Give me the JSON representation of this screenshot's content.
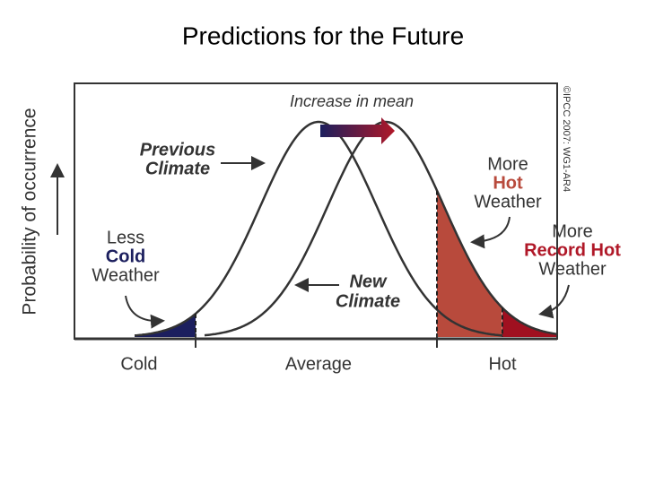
{
  "title": "Predictions for the Future",
  "y_axis_label": "Probability of occurrence",
  "mean_shift_label": "Increase in mean",
  "previous_climate": [
    "Previous",
    "Climate"
  ],
  "new_climate": [
    "New",
    "Climate"
  ],
  "less_cold": [
    "Less",
    "Cold",
    "Weather"
  ],
  "more_hot": [
    "More",
    "Hot",
    "Weather"
  ],
  "more_record_hot": [
    "More",
    "Record Hot",
    "Weather"
  ],
  "x_labels": [
    "Cold",
    "Average",
    "Hot"
  ],
  "credit": "©IPCC 2007: WG1-AR4"
}
